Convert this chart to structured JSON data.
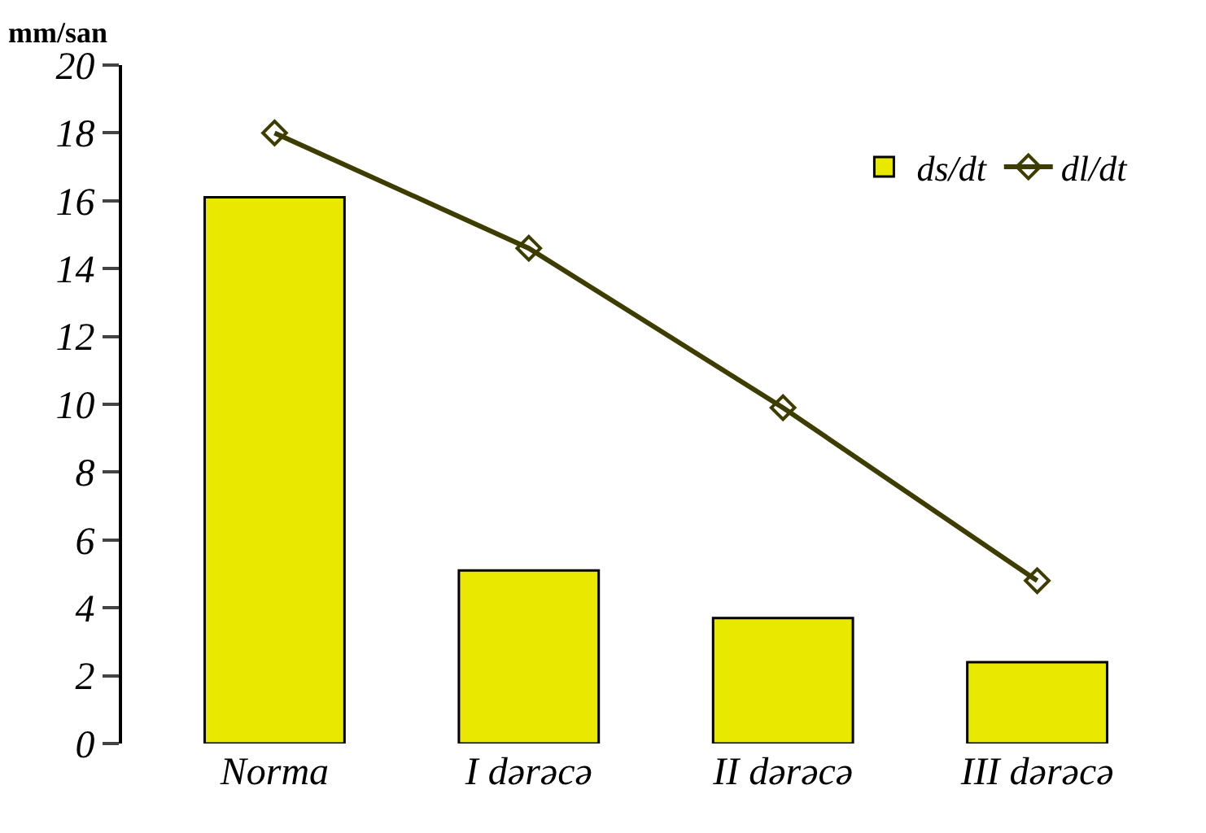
{
  "chart_data": {
    "type": "bar",
    "ylabel": "mm/san",
    "categories": [
      "Norma",
      "I dərəcə",
      "II dərəcə",
      "III dərəcə"
    ],
    "series": [
      {
        "name": "ds/dt",
        "color": "#e8e800",
        "values": [
          16.1,
          5.1,
          3.7,
          2.4
        ]
      },
      {
        "name": "dl/dt",
        "type": "line",
        "color": "#3d3d00",
        "marker": "diamond",
        "values": [
          18.0,
          14.6,
          9.9,
          4.8
        ]
      }
    ],
    "ylim": [
      0,
      20
    ],
    "yticks": [
      0,
      2,
      4,
      6,
      8,
      10,
      12,
      14,
      16,
      18,
      20
    ],
    "legend": "top right"
  }
}
